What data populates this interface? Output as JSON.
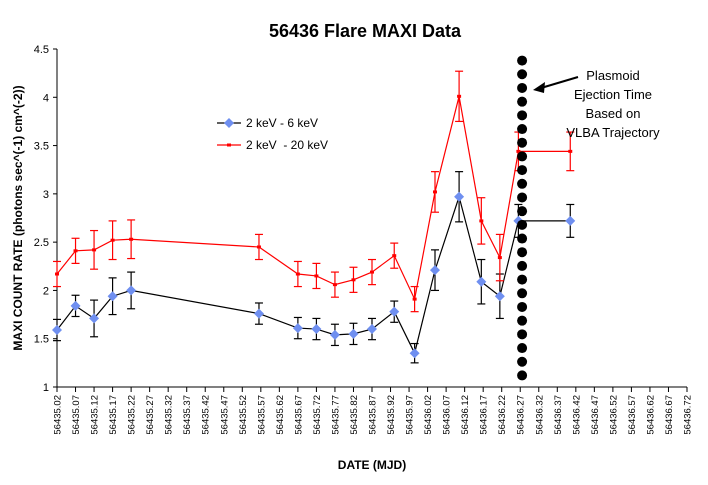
{
  "chart_data": {
    "type": "line",
    "title": "56436 Flare MAXI Data",
    "xlabel": "DATE (MJD)",
    "ylabel": "MAXI COUNT RATE (photons sec^(-1) cm^(-2))",
    "ylim": [
      1,
      4.5
    ],
    "yticks": [
      "1",
      "1.5",
      "2",
      "2.5",
      "3",
      "3.5",
      "4",
      "4.5"
    ],
    "xlim": [
      56435.02,
      56436.72
    ],
    "xticks": [
      "56435.02",
      "56435.07",
      "56435.12",
      "56435.17",
      "56435.22",
      "56435.27",
      "56435.32",
      "56435.37",
      "56435.42",
      "56435.47",
      "56435.52",
      "56435.57",
      "56435.62",
      "56435.67",
      "56435.72",
      "56435.77",
      "56435.82",
      "56435.87",
      "56435.92",
      "56435.97",
      "56436.02",
      "56436.07",
      "56436.12",
      "56436.17",
      "56436.22",
      "56436.27",
      "56436.32",
      "56436.37",
      "56436.42",
      "56436.47",
      "56436.52",
      "56436.57",
      "56436.62",
      "56436.67",
      "56436.72"
    ],
    "series": [
      {
        "name": "2 keV - 6 keV",
        "color": "#000000",
        "marker_color": "#6f8ff0",
        "marker": "diamond",
        "x": [
          56435.02,
          56435.07,
          56435.12,
          56435.17,
          56435.22,
          56435.565,
          56435.67,
          56435.72,
          56435.77,
          56435.82,
          56435.87,
          56435.93,
          56435.985,
          56436.04,
          56436.105,
          56436.165,
          56436.215,
          56436.265,
          56436.405
        ],
        "values": [
          1.59,
          1.84,
          1.71,
          1.94,
          2.0,
          1.76,
          1.61,
          1.6,
          1.54,
          1.55,
          1.6,
          1.78,
          1.35,
          2.21,
          2.97,
          2.09,
          1.94,
          2.72,
          2.72
        ],
        "errors": [
          0.11,
          0.11,
          0.19,
          0.19,
          0.19,
          0.11,
          0.11,
          0.11,
          0.11,
          0.11,
          0.11,
          0.11,
          0.1,
          0.21,
          0.26,
          0.23,
          0.23,
          0.17,
          0.17
        ]
      },
      {
        "name": "2 keV  - 20 keV",
        "color": "#ff0000",
        "marker_color": "#ff0000",
        "marker": "dash",
        "x": [
          56435.02,
          56435.07,
          56435.12,
          56435.17,
          56435.22,
          56435.565,
          56435.67,
          56435.72,
          56435.77,
          56435.82,
          56435.87,
          56435.93,
          56435.985,
          56436.04,
          56436.105,
          56436.165,
          56436.215,
          56436.265,
          56436.405
        ],
        "values": [
          2.17,
          2.41,
          2.42,
          2.52,
          2.53,
          2.45,
          2.17,
          2.15,
          2.06,
          2.11,
          2.19,
          2.36,
          1.91,
          3.02,
          4.01,
          2.72,
          2.34,
          3.44,
          3.44
        ],
        "errors": [
          0.13,
          0.13,
          0.2,
          0.2,
          0.2,
          0.13,
          0.13,
          0.13,
          0.13,
          0.13,
          0.13,
          0.13,
          0.13,
          0.21,
          0.26,
          0.24,
          0.24,
          0.2,
          0.2
        ]
      }
    ],
    "vertical_marker": {
      "x": 56436.275,
      "style": "dotted",
      "label": "Plasmoid Ejection Time Based on VLBA Trajectory"
    },
    "annotation_lines": [
      "Plasmoid",
      "Ejection Time",
      "Based on",
      "VLBA Trajectory"
    ],
    "legend": [
      "2 keV - 6 keV",
      "2 keV  - 20 keV"
    ]
  }
}
